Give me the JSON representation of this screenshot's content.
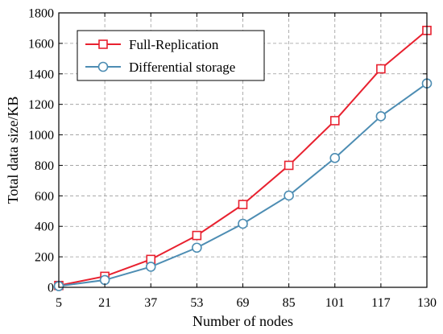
{
  "chart_data": {
    "type": "line",
    "title": "",
    "xlabel": "Number of nodes",
    "ylabel": "Total data size/KB",
    "x": [
      5,
      21,
      37,
      53,
      69,
      85,
      101,
      117,
      130
    ],
    "x_tick_labels": [
      "5",
      "21",
      "37",
      "53",
      "69",
      "85",
      "101",
      "117",
      "130"
    ],
    "y_tick_values": [
      0,
      200,
      400,
      600,
      800,
      1000,
      1200,
      1400,
      1600,
      1800
    ],
    "y_tick_labels": [
      "0",
      "200",
      "400",
      "600",
      "800",
      "1000",
      "1200",
      "1400",
      "1600",
      "1800"
    ],
    "ylim": [
      0,
      1800
    ],
    "grid": true,
    "legend_position": "top-left",
    "series": [
      {
        "name": "Full-Replication",
        "values": [
          12,
          72,
          183,
          340,
          543,
          800,
          1093,
          1433,
          1685
        ],
        "color": "#e8212f",
        "marker": "square"
      },
      {
        "name": "Differential storage",
        "values": [
          8,
          48,
          135,
          260,
          417,
          602,
          848,
          1122,
          1337
        ],
        "color": "#4d8db3",
        "marker": "circle"
      }
    ]
  }
}
